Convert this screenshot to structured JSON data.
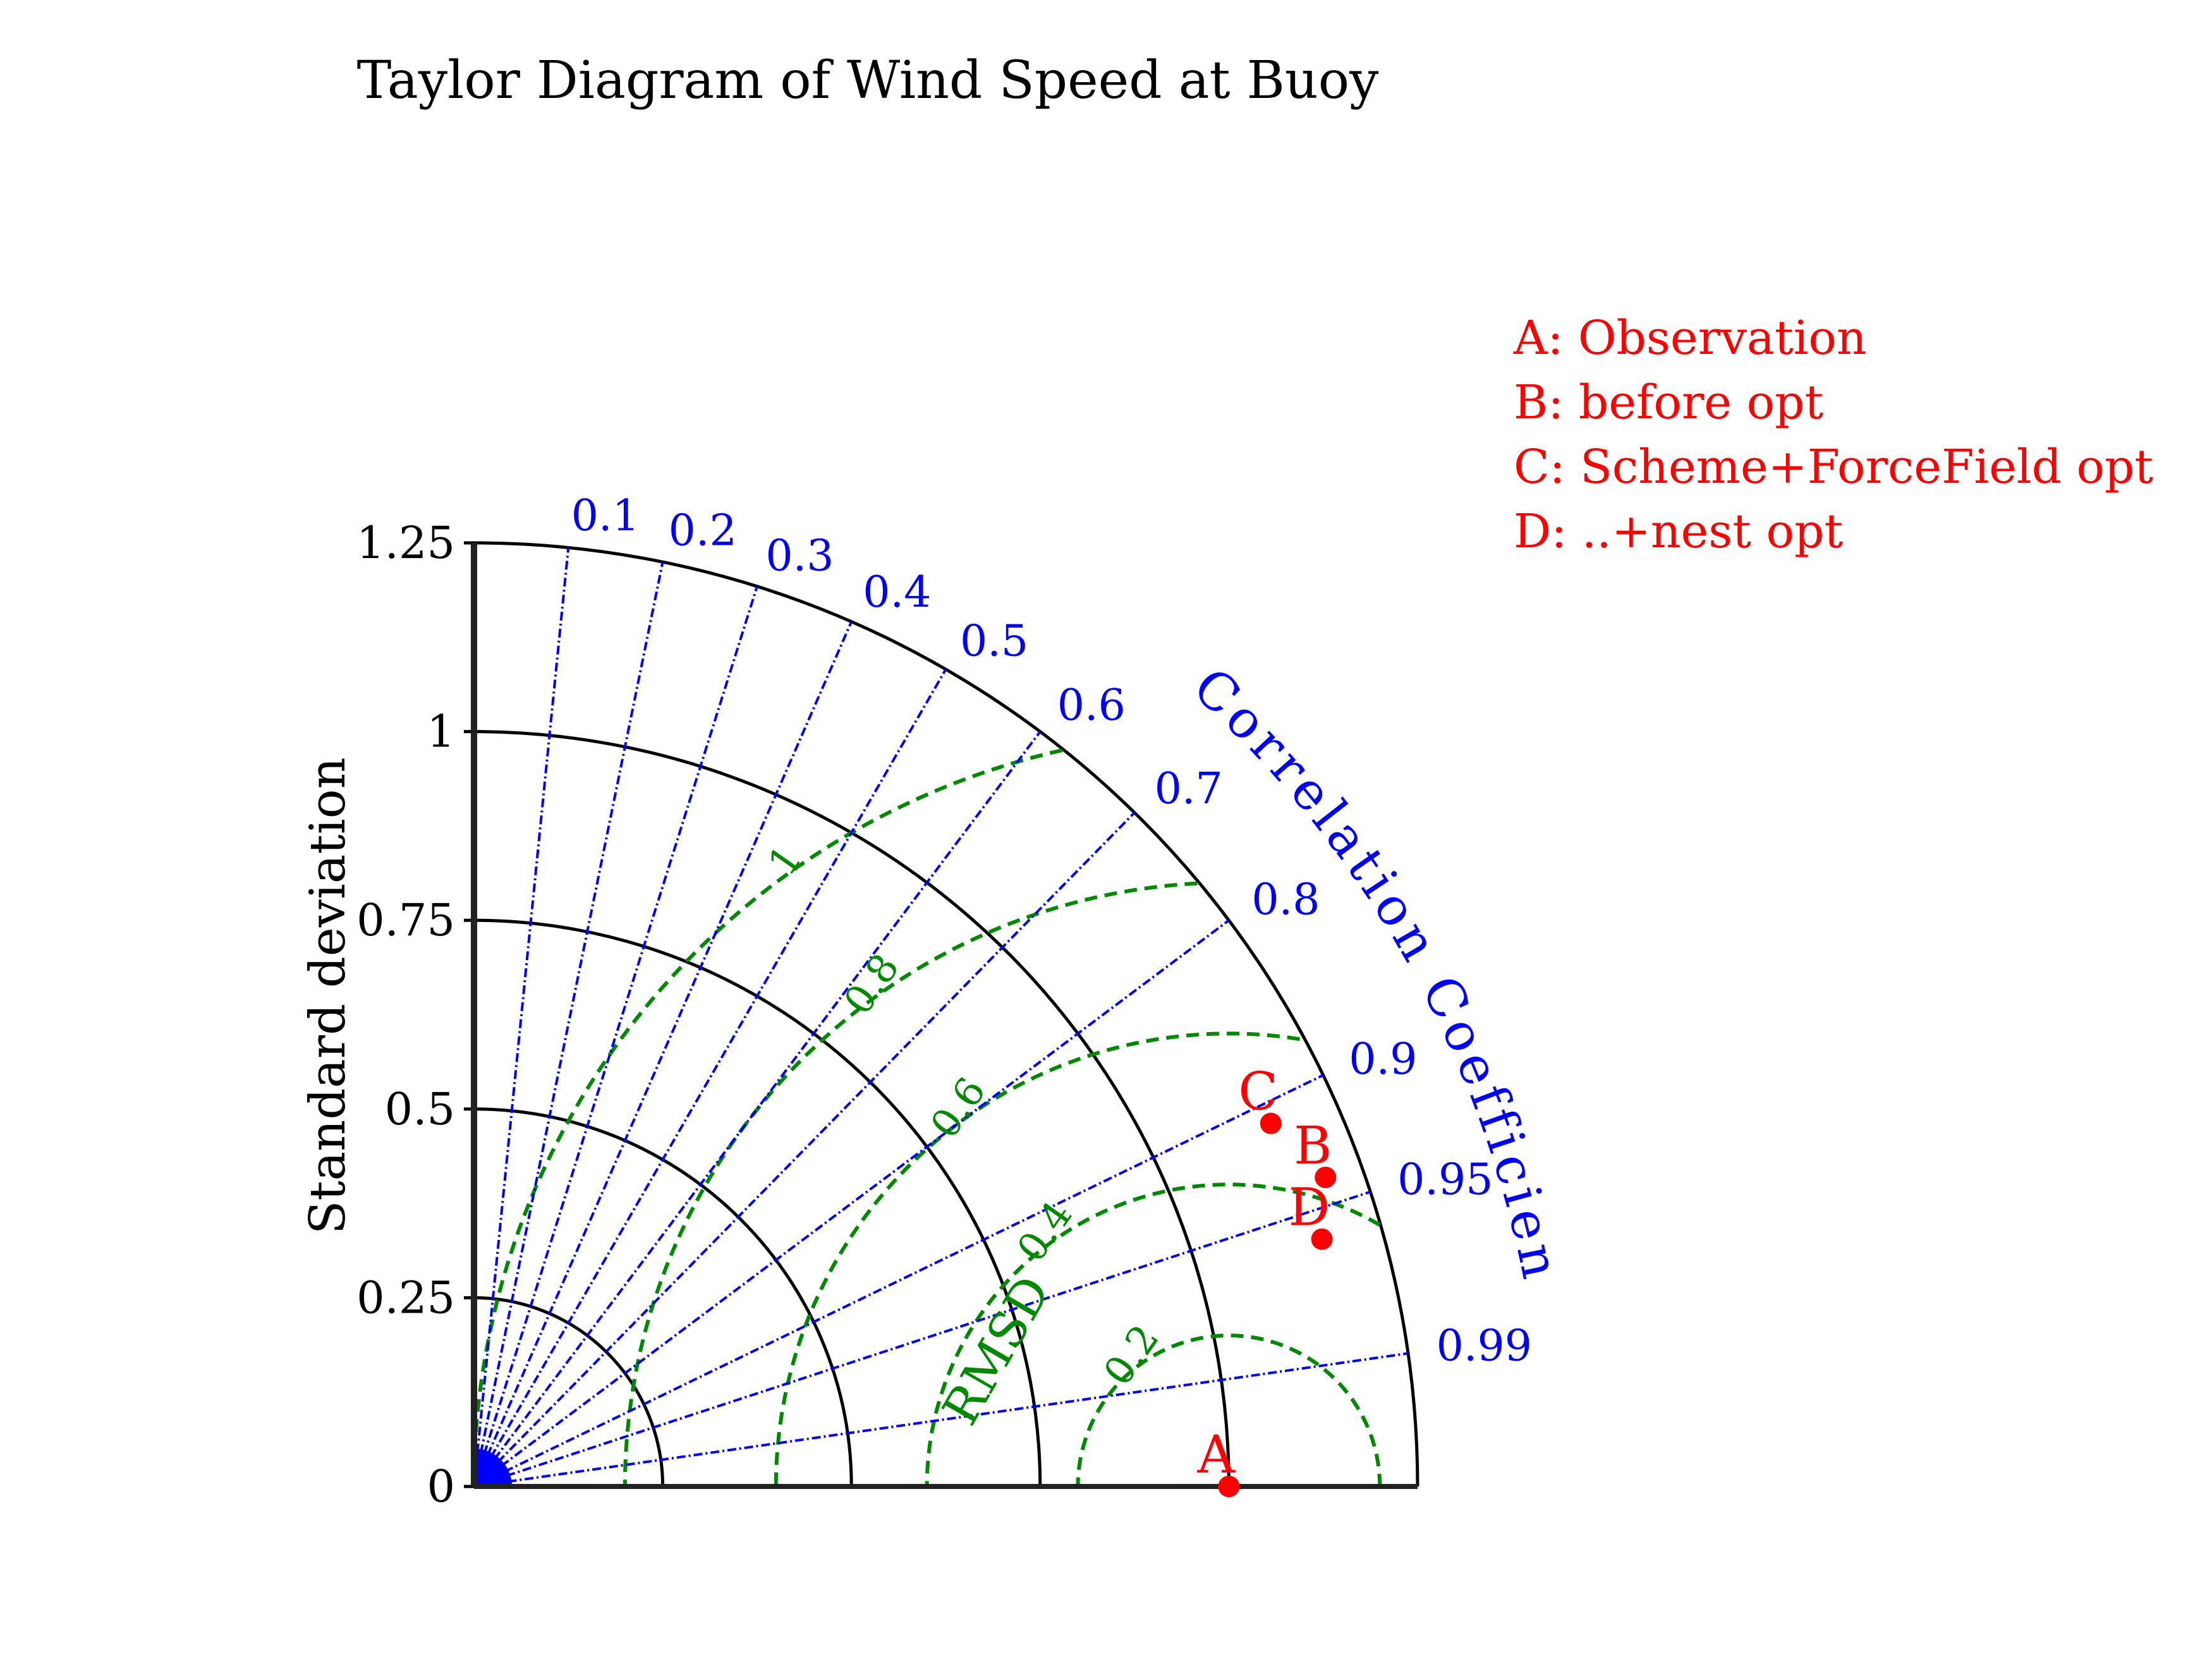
{
  "chart_data": {
    "type": "scatter",
    "subtype": "taylor-diagram",
    "title": "Taylor Diagram of Wind Speed at Buoy",
    "ylabel": "Standard deviation",
    "correlation_label": "Correlation Coefficient",
    "rmsd_label": "RMSD",
    "std_range": [
      0,
      1.25
    ],
    "std_ticks": [
      0,
      0.25,
      0.5,
      0.75,
      1,
      1.25
    ],
    "std_tick_labels": [
      "0",
      "0.25",
      "0.5",
      "0.75",
      "1",
      "1.25"
    ],
    "correlation_ticks": [
      0.1,
      0.2,
      0.3,
      0.4,
      0.5,
      0.6,
      0.7,
      0.8,
      0.9,
      0.95,
      0.99
    ],
    "correlation_tick_labels": [
      "0.1",
      "0.2",
      "0.3",
      "0.4",
      "0.5",
      "0.6",
      "0.7",
      "0.8",
      "0.9",
      "0.95",
      "0.99"
    ],
    "rmsd_reference_std": 1,
    "rmsd_contours": [
      0.2,
      0.4,
      0.6,
      0.8,
      1
    ],
    "rmsd_contour_labels": [
      "0.2",
      "0.4",
      "0.6",
      "0.8",
      "1"
    ],
    "points": [
      {
        "label": "A",
        "std": 1.0,
        "correlation": 1.0
      },
      {
        "label": "B",
        "std": 1.2,
        "correlation": 0.94
      },
      {
        "label": "C",
        "std": 1.16,
        "correlation": 0.91
      },
      {
        "label": "D",
        "std": 1.17,
        "correlation": 0.96
      }
    ],
    "legend": [
      "A: Observation",
      "B: before opt",
      "C: Scheme+ForceField opt",
      "D: ..+nest opt"
    ],
    "legend_position": "top-right",
    "colors": {
      "axes": "#000000",
      "correlation": "#0000ff",
      "rmsd": "#008800",
      "points": "#ff0000"
    }
  }
}
